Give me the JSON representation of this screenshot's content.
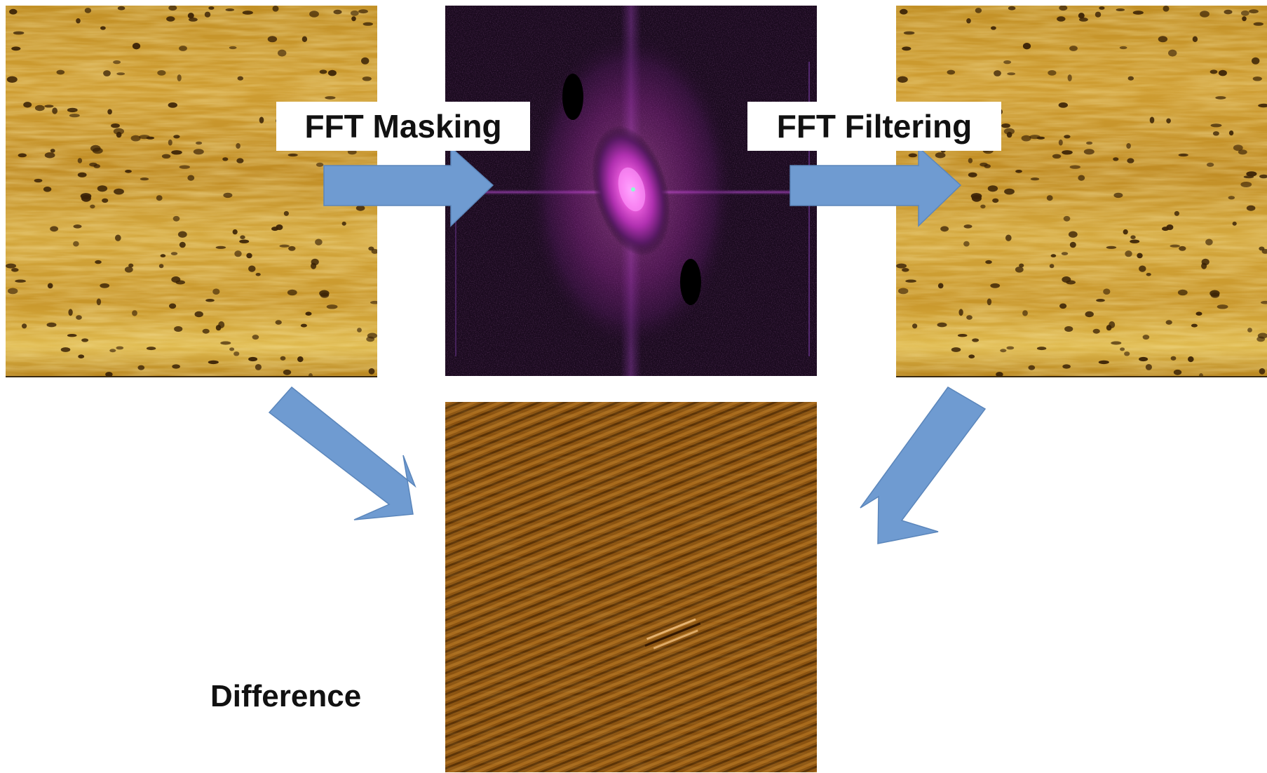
{
  "labels": {
    "masking": "FFT Masking",
    "filtering": "FFT Filtering",
    "difference": "Difference"
  },
  "panels": {
    "original": {
      "image": "afm-height-map",
      "palette": "gold"
    },
    "fft": {
      "image": "fft-power-spectrum",
      "palette": "magenta-on-black"
    },
    "filtered": {
      "image": "afm-height-map-filtered",
      "palette": "gold"
    },
    "difference": {
      "image": "periodic-stripe-difference",
      "palette": "brown"
    }
  },
  "arrows": {
    "color": "#6f9bd1",
    "stroke": "#5b86bb"
  },
  "colors": {
    "afm_base": "#c8962a",
    "afm_light": "#e8c45a",
    "afm_dark": "#3a2206",
    "fft_bg": "#1a0a1e",
    "fft_glow": "#e040d0",
    "diff_base": "#8a5210"
  }
}
